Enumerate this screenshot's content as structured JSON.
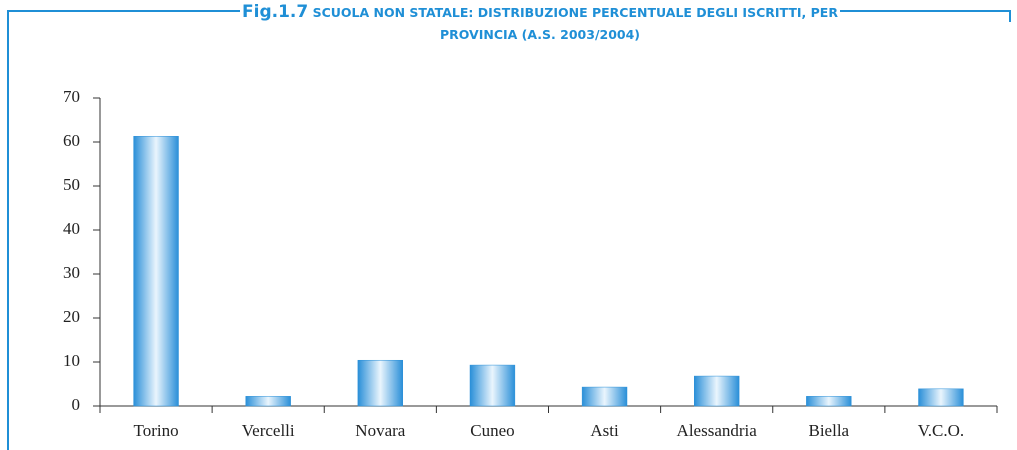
{
  "chart_data": {
    "type": "bar",
    "figure_label": "Fig.1.7",
    "title": "SCUOLA NON STATALE: DISTRIBUZIONE PERCENTUALE DEGLI ISCRITTI, PER PROVINCIA (A.S. 2003/2004)",
    "categories": [
      "Torino",
      "Vercelli",
      "Novara",
      "Cuneo",
      "Asti",
      "Alessandria",
      "Biella",
      "V.C.O."
    ],
    "values": [
      61.3,
      2.2,
      10.4,
      9.3,
      4.3,
      6.8,
      2.2,
      3.9
    ],
    "color": "#2a8fd8",
    "ylim": [
      0,
      70
    ],
    "yticks": [
      0,
      10,
      20,
      30,
      40,
      50,
      60,
      70
    ],
    "grid": false
  }
}
